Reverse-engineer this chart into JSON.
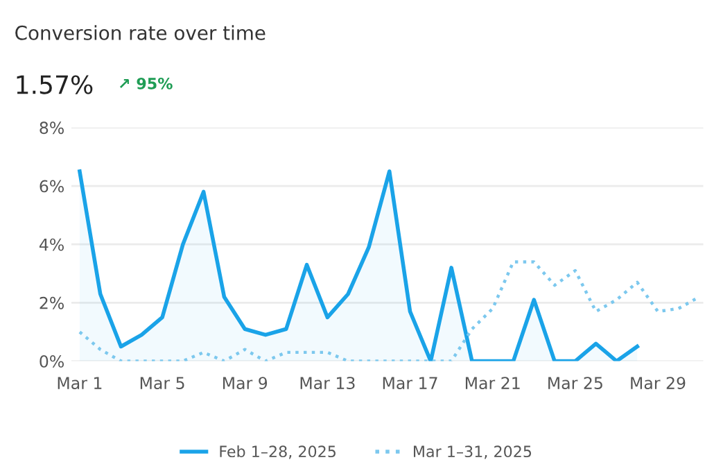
{
  "chart_data": {
    "type": "line",
    "title": "Conversion rate over time",
    "subtitle": "1.57%",
    "annotations": [
      "↗ 95%"
    ],
    "categories": [
      "Mar 1",
      null,
      null,
      null,
      "Mar 5",
      null,
      null,
      null,
      "Mar 9",
      null,
      null,
      null,
      "Mar 13",
      null,
      null,
      null,
      "Mar 17",
      null,
      null,
      null,
      "Mar 21",
      null,
      null,
      null,
      "Mar 25",
      null,
      null,
      null,
      "Mar 29",
      null,
      null
    ],
    "series": [
      {
        "name": "Feb 1–28, 2025",
        "type": "area",
        "color": "#1aa3e8",
        "line_style": "solid",
        "values": [
          6.5,
          2.3,
          0.5,
          0.9,
          1.5,
          4.0,
          5.8,
          2.2,
          1.1,
          0.9,
          1.1,
          3.3,
          1.5,
          2.3,
          3.9,
          6.5,
          1.7,
          0,
          3.2,
          0,
          0,
          0,
          2.1,
          0,
          0,
          0.6,
          0,
          0.5,
          null,
          null,
          null
        ]
      },
      {
        "name": "Mar 1–31, 2025",
        "color": "#7cc8ee",
        "line_style": "dotted",
        "values": [
          1.0,
          0.4,
          0,
          0,
          0,
          0,
          0.3,
          0,
          0.4,
          0,
          0.3,
          0.3,
          0.3,
          0,
          0,
          0,
          0,
          0,
          0,
          1.1,
          1.8,
          3.4,
          3.4,
          2.6,
          3.1,
          1.7,
          2.1,
          2.7,
          1.7,
          1.8,
          2.2
        ]
      }
    ],
    "ylim": [
      0,
      8
    ],
    "yticks": [
      {
        "value": 0,
        "label": "0%"
      },
      {
        "value": 2,
        "label": "2%"
      },
      {
        "value": 4,
        "label": "4%"
      },
      {
        "value": 6,
        "label": "6%"
      },
      {
        "value": 8,
        "label": "8%"
      }
    ],
    "grid": "y",
    "legend": "bottom"
  }
}
